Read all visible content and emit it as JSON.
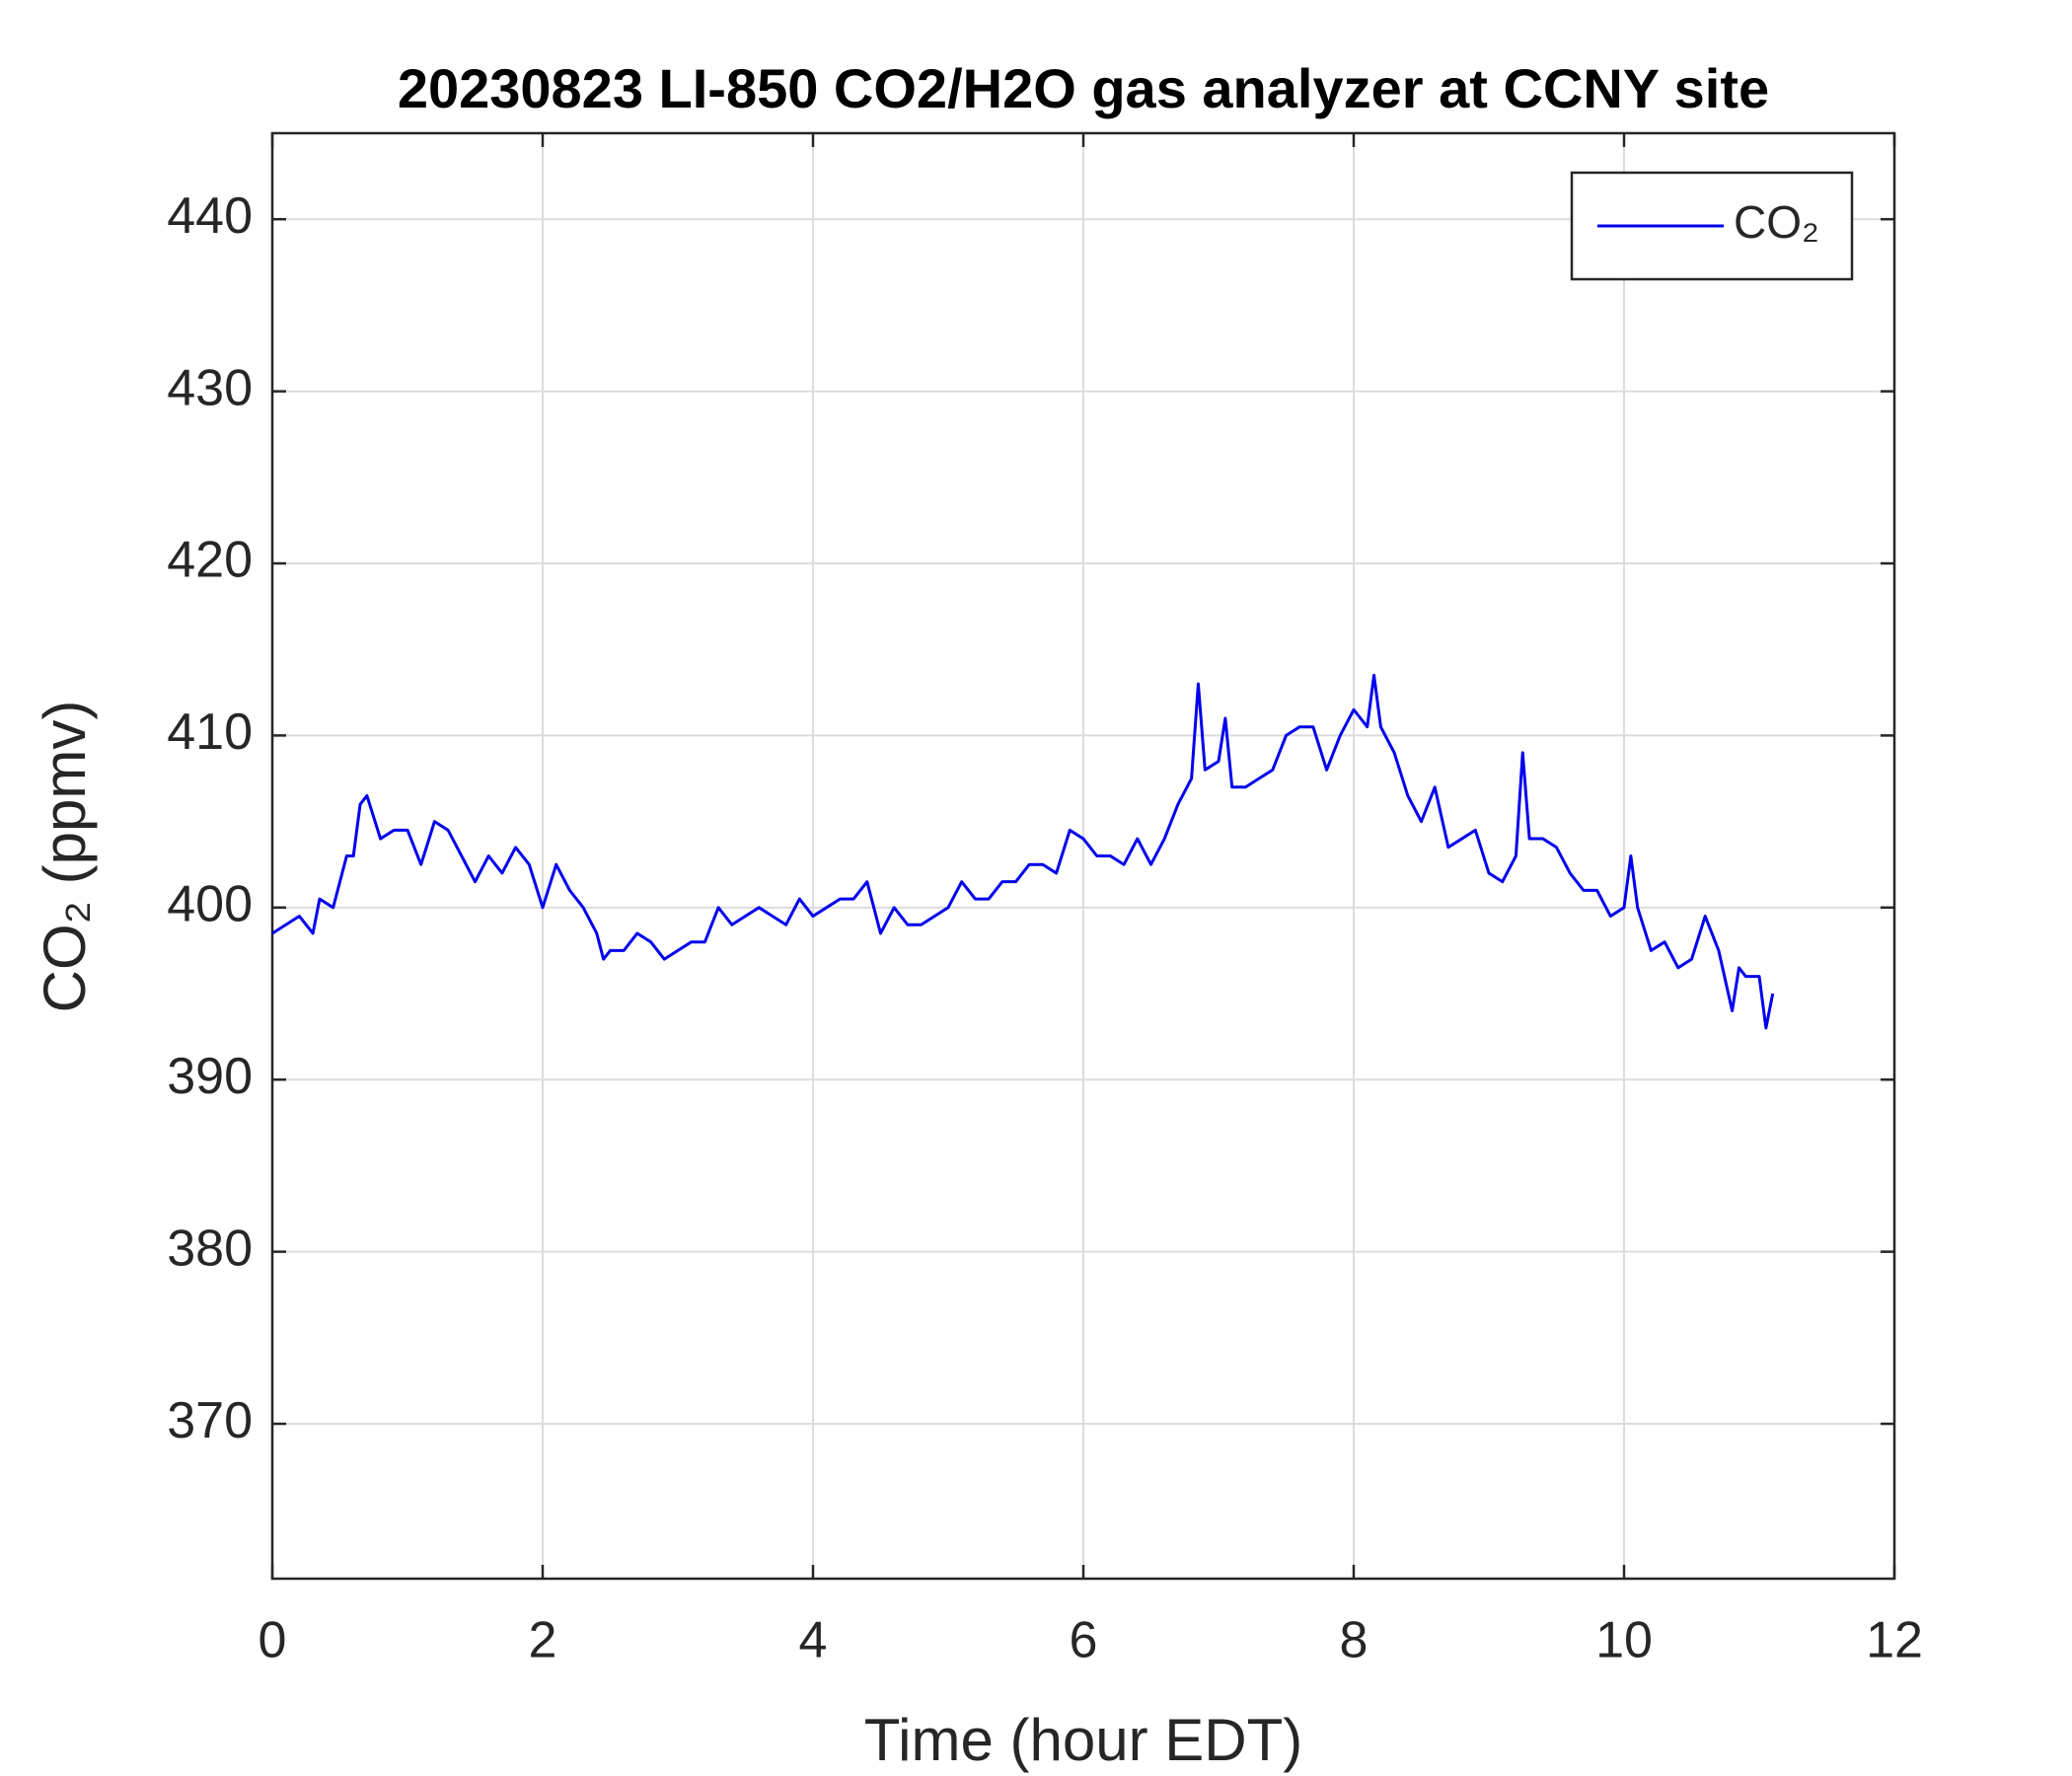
{
  "chart_data": {
    "type": "line",
    "title": "20230823 LI-850 CO2/H2O gas analyzer at CCNY site",
    "xlabel": "Time (hour EDT)",
    "ylabel": "CO₂ (ppmv)",
    "xlim": [
      0,
      12
    ],
    "xticks": [
      0,
      2,
      4,
      6,
      8,
      10,
      12
    ],
    "ylim": [
      361,
      445
    ],
    "yticks": [
      370,
      380,
      390,
      400,
      410,
      420,
      430,
      440
    ],
    "grid": true,
    "legend": "upper right",
    "x": [
      0,
      0.1,
      0.2,
      0.3,
      0.35,
      0.45,
      0.55,
      0.6,
      0.65,
      0.7,
      0.8,
      0.9,
      1.0,
      1.1,
      1.2,
      1.3,
      1.4,
      1.5,
      1.6,
      1.7,
      1.8,
      1.9,
      2.0,
      2.1,
      2.2,
      2.3,
      2.4,
      2.45,
      2.5,
      2.6,
      2.7,
      2.8,
      2.9,
      3.0,
      3.1,
      3.2,
      3.3,
      3.4,
      3.5,
      3.6,
      3.7,
      3.8,
      3.9,
      4.0,
      4.1,
      4.2,
      4.3,
      4.4,
      4.5,
      4.6,
      4.7,
      4.8,
      4.9,
      5.0,
      5.1,
      5.2,
      5.3,
      5.4,
      5.5,
      5.6,
      5.7,
      5.8,
      5.9,
      6.0,
      6.1,
      6.2,
      6.3,
      6.4,
      6.5,
      6.6,
      6.7,
      6.8,
      6.85,
      6.9,
      7.0,
      7.05,
      7.1,
      7.2,
      7.3,
      7.4,
      7.5,
      7.6,
      7.7,
      7.8,
      7.9,
      8.0,
      8.1,
      8.15,
      8.2,
      8.3,
      8.4,
      8.5,
      8.6,
      8.7,
      8.8,
      8.9,
      9.0,
      9.1,
      9.2,
      9.25,
      9.3,
      9.4,
      9.5,
      9.6,
      9.7,
      9.8,
      9.9,
      10.0,
      10.05,
      10.1,
      10.2,
      10.3,
      10.4,
      10.5,
      10.6,
      10.7,
      10.8,
      10.85,
      10.9,
      11.0,
      11.05,
      11.1
    ],
    "series": [
      {
        "name": "CO₂",
        "color": "#0000ee",
        "values": [
          398.5,
          399,
          399.5,
          398.5,
          400.5,
          400,
          403,
          403,
          406,
          406.5,
          404,
          404.5,
          404.5,
          402.5,
          405,
          404.5,
          403,
          401.5,
          403,
          402,
          403.5,
          402.5,
          400,
          402.5,
          401,
          400,
          398.5,
          397,
          397.5,
          397.5,
          398.5,
          398,
          397,
          397.5,
          398,
          398,
          400,
          399,
          399.5,
          400,
          399.5,
          399,
          400.5,
          399.5,
          400,
          400.5,
          400.5,
          401.5,
          398.5,
          400,
          399,
          399,
          399.5,
          400,
          401.5,
          400.5,
          400.5,
          401.5,
          401.5,
          402.5,
          402.5,
          402,
          404.5,
          404,
          403,
          403,
          402.5,
          404,
          402.5,
          404,
          406,
          407.5,
          413,
          408,
          408.5,
          411,
          407,
          407,
          407.5,
          408,
          410,
          410.5,
          410.5,
          408,
          410,
          411.5,
          410.5,
          413.5,
          410.5,
          409,
          406.5,
          405,
          407,
          403.5,
          404,
          404.5,
          402,
          401.5,
          403,
          409,
          404,
          404,
          403.5,
          402,
          401,
          401,
          399.5,
          400,
          403,
          400,
          397.5,
          398,
          396.5,
          397,
          399.5,
          397.5,
          394,
          396.5,
          396,
          396,
          393,
          395
        ]
      }
    ]
  }
}
